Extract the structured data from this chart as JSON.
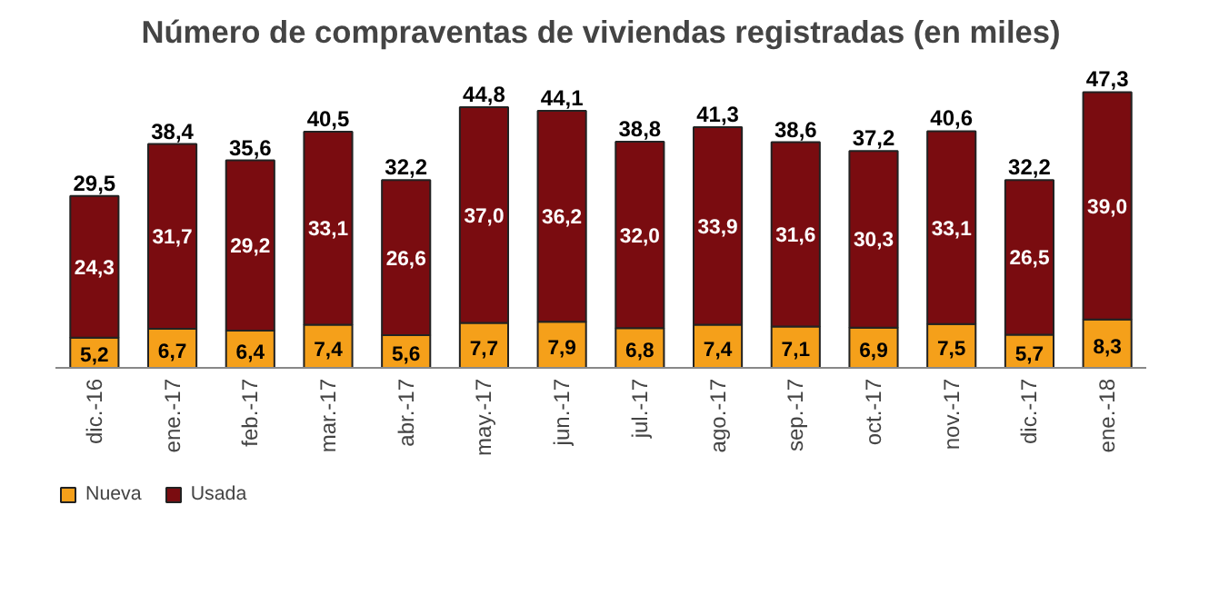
{
  "chart_data": {
    "type": "bar",
    "title": "Número de compraventas de viviendas registradas (en miles)",
    "stacked": true,
    "categories": [
      "dic.-16",
      "ene.-17",
      "feb.-17",
      "mar.-17",
      "abr.-17",
      "may.-17",
      "jun.-17",
      "jul.-17",
      "ago.-17",
      "sep.-17",
      "oct.-17",
      "nov.-17",
      "dic.-17",
      "ene.-18"
    ],
    "series": [
      {
        "name": "Nueva",
        "color": "#f5a01a",
        "values": [
          5.2,
          6.7,
          6.4,
          7.4,
          5.6,
          7.7,
          7.9,
          6.8,
          7.4,
          7.1,
          6.9,
          7.5,
          5.7,
          8.3
        ],
        "value_labels": [
          "5,2",
          "6,7",
          "6,4",
          "7,4",
          "5,6",
          "7,7",
          "7,9",
          "6,8",
          "7,4",
          "7,1",
          "6,9",
          "7,5",
          "5,7",
          "8,3"
        ]
      },
      {
        "name": "Usada",
        "color": "#7a0c10",
        "values": [
          24.3,
          31.7,
          29.2,
          33.1,
          26.6,
          37.0,
          36.2,
          32.0,
          33.9,
          31.6,
          30.3,
          33.1,
          26.5,
          39.0
        ],
        "value_labels": [
          "24,3",
          "31,7",
          "29,2",
          "33,1",
          "26,6",
          "37,0",
          "36,2",
          "32,0",
          "33,9",
          "31,6",
          "30,3",
          "33,1",
          "26,5",
          "39,0"
        ]
      }
    ],
    "totals": [
      "29,5",
      "38,4",
      "35,6",
      "40,5",
      "32,2",
      "44,8",
      "44,1",
      "38,8",
      "41,3",
      "38,6",
      "37,2",
      "40,6",
      "32,2",
      "47,3"
    ],
    "legend": "bottom left",
    "grid": false
  }
}
